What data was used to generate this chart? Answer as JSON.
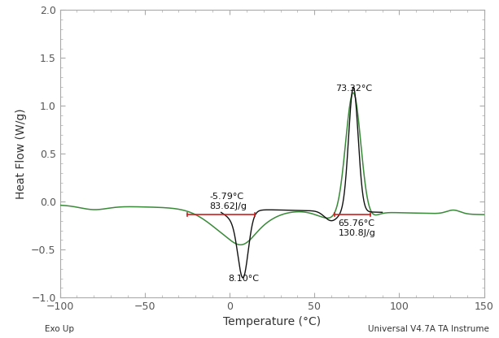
{
  "xlim": [
    -100,
    150
  ],
  "ylim": [
    -1.0,
    2.0
  ],
  "xlabel": "Temperature (°C)",
  "ylabel": "Heat Flow (W/g)",
  "bottom_left_label": "Exo Up",
  "bottom_right_label": "Universal V4.7A TA Instrume",
  "green_color": "#3a8a3a",
  "black_color": "#111111",
  "red_color": "#cc2222",
  "annotation1_label": "-5.79°C\n83.62J/g",
  "annotation2_label": "8.10°C",
  "annotation3_label": "73.32°C",
  "annotation4_label": "65.76°C\n130.8J/g",
  "tick_label_fontsize": 9,
  "axis_label_fontsize": 10,
  "small_label_fontsize": 8,
  "background_color": "#ffffff",
  "spine_color": "#aaaaaa"
}
